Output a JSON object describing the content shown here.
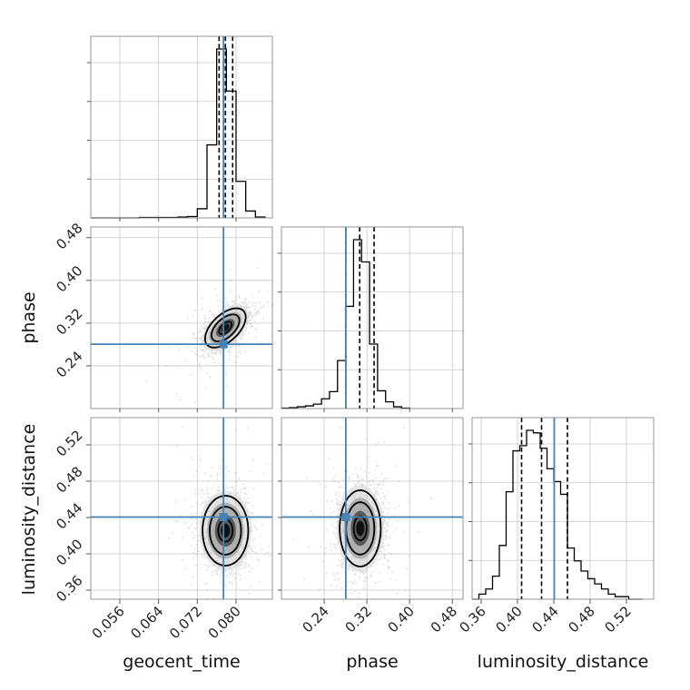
{
  "chart_data": {
    "type": "corner",
    "parameters": [
      {
        "name": "geocent_time",
        "label": "geocent_time",
        "range": [
          0.05,
          0.0875
        ],
        "ticks": [
          "0.056",
          "0.064",
          "0.072",
          "0.080"
        ],
        "tick_values": [
          0.056,
          0.064,
          0.072,
          0.08
        ],
        "truth": 0.0774,
        "quantiles": [
          0.0765,
          0.0778,
          0.0793
        ],
        "hist_bins": [
          0.05,
          0.052,
          0.054,
          0.056,
          0.058,
          0.06,
          0.062,
          0.064,
          0.066,
          0.068,
          0.07,
          0.072,
          0.074,
          0.076,
          0.078,
          0.08,
          0.082,
          0.084,
          0.086
        ],
        "hist_counts": [
          0,
          0,
          0,
          0,
          0,
          1,
          1,
          1,
          1,
          2,
          3,
          20,
          160,
          370,
          278,
          80,
          15,
          2
        ]
      },
      {
        "name": "phase",
        "label": "phase",
        "range": [
          0.16,
          0.5
        ],
        "ticks": [
          "0.24",
          "0.32",
          "0.40",
          "0.48"
        ],
        "tick_values": [
          0.24,
          0.32,
          0.4,
          0.48
        ],
        "truth": 0.2805,
        "quantiles": [
          0.2805,
          0.3065,
          0.3335
        ],
        "hist_bins": [
          0.16,
          0.175,
          0.19,
          0.205,
          0.22,
          0.235,
          0.25,
          0.265,
          0.28,
          0.295,
          0.31,
          0.325,
          0.34,
          0.355,
          0.37,
          0.385,
          0.4
        ],
        "hist_counts": [
          1,
          2,
          4,
          6,
          10,
          22,
          38,
          108,
          230,
          380,
          330,
          145,
          40,
          15,
          4,
          1
        ]
      },
      {
        "name": "luminosity_distance",
        "label": "luminosity_distance",
        "range": [
          0.35,
          0.55
        ],
        "ticks": [
          "0.36",
          "0.40",
          "0.44",
          "0.48",
          "0.52"
        ],
        "tick_values": [
          0.36,
          0.4,
          0.44,
          0.48,
          0.52
        ],
        "truth": 0.4405,
        "quantiles": [
          0.4045,
          0.4265,
          0.455
        ],
        "hist_bins": [
          0.35,
          0.3575,
          0.365,
          0.3725,
          0.38,
          0.3875,
          0.395,
          0.4025,
          0.41,
          0.4175,
          0.425,
          0.4325,
          0.44,
          0.4475,
          0.455,
          0.4625,
          0.47,
          0.4775,
          0.485,
          0.4925,
          0.5,
          0.5075,
          0.515,
          0.5225,
          0.53,
          0.5375
        ],
        "hist_counts": [
          0,
          2,
          4,
          9,
          21,
          42,
          58,
          60,
          66,
          65,
          59,
          51,
          46,
          41,
          20,
          15,
          11,
          8,
          6,
          4,
          2,
          1,
          1,
          0,
          0
        ]
      }
    ],
    "ylabels": {
      "phase": "phase",
      "luminosity_distance": "luminosity_distance"
    },
    "posterior_2d": [
      {
        "x": "geocent_time",
        "y": "phase",
        "center": [
          0.0778,
          0.311
        ],
        "sigma": [
          0.0024,
          0.021
        ],
        "rho": 0.55
      },
      {
        "x": "geocent_time",
        "y": "luminosity_distance",
        "center": [
          0.0778,
          0.4255
        ],
        "sigma": [
          0.0027,
          0.022
        ],
        "rho": 0.0
      },
      {
        "x": "phase",
        "y": "luminosity_distance",
        "center": [
          0.3075,
          0.428
        ],
        "sigma": [
          0.022,
          0.024
        ],
        "rho": 0.0
      }
    ],
    "truth_color": "#4682b4",
    "grid": true
  }
}
